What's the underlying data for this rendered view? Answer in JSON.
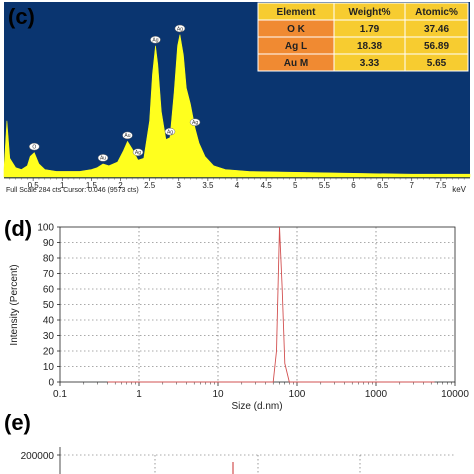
{
  "panels": {
    "c": "(c)",
    "d": "(d)",
    "e": "(e)"
  },
  "colors": {
    "eds_background": "#0a3570",
    "eds_fill": "#ffff1e",
    "table_header": "#f7cc30",
    "table_element_cell": "#f08a32",
    "table_value_cell": "#f7cc30",
    "dls_line": "#d25050"
  },
  "chart_data": [
    {
      "type": "area",
      "panel": "c",
      "xlabel_unit": "keV",
      "x_ticks": [
        "0.5",
        "1",
        "1.5",
        "2",
        "2.5",
        "3",
        "3.5",
        "4",
        "4.5",
        "5",
        "5.5",
        "6",
        "6.5",
        "7",
        "7.5"
      ],
      "xlim": [
        0.0,
        8.0
      ],
      "footer": "Full Scale 284 cts Cursor: 0.046  (9573 cts)",
      "spectrum": {
        "x": [
          0.0,
          0.05,
          0.1,
          0.2,
          0.3,
          0.4,
          0.45,
          0.52,
          0.6,
          0.7,
          0.9,
          1.1,
          1.3,
          1.5,
          1.6,
          1.7,
          1.8,
          1.95,
          2.05,
          2.12,
          2.2,
          2.3,
          2.4,
          2.5,
          2.55,
          2.6,
          2.64,
          2.7,
          2.78,
          2.85,
          2.92,
          2.98,
          3.02,
          3.08,
          3.13,
          3.2,
          3.28,
          3.35,
          3.45,
          3.6,
          3.8,
          4.2,
          5.0,
          6.0,
          7.0,
          8.0
        ],
        "y": [
          8,
          60,
          20,
          10,
          8,
          12,
          22,
          26,
          14,
          8,
          6,
          6,
          6,
          8,
          10,
          14,
          12,
          16,
          28,
          38,
          30,
          18,
          20,
          60,
          110,
          140,
          120,
          70,
          40,
          42,
          90,
          140,
          152,
          130,
          95,
          78,
          52,
          36,
          22,
          12,
          8,
          6,
          5,
          4,
          3,
          3
        ]
      },
      "peak_labels": [
        {
          "text": "O",
          "x": 0.52,
          "y": 26
        },
        {
          "text": "Au",
          "x": 1.7,
          "y": 14
        },
        {
          "text": "Au",
          "x": 2.12,
          "y": 38
        },
        {
          "text": "Ag",
          "x": 2.3,
          "y": 20
        },
        {
          "text": "Ag",
          "x": 2.6,
          "y": 140
        },
        {
          "text": "Ag",
          "x": 2.85,
          "y": 42
        },
        {
          "text": "Ag",
          "x": 3.02,
          "y": 152
        },
        {
          "text": "Ag",
          "x": 3.28,
          "y": 52
        }
      ],
      "table": {
        "headers": [
          "Element",
          "Weight%",
          "Atomic%"
        ],
        "rows": [
          [
            "O K",
            "1.79",
            "37.46"
          ],
          [
            "Ag L",
            "18.38",
            "56.89"
          ],
          [
            "Au M",
            "3.33",
            "5.65"
          ]
        ]
      }
    },
    {
      "type": "line",
      "panel": "d",
      "xlabel": "Size (d.nm)",
      "ylabel": "Intensity (Percent)",
      "xscale": "log",
      "xlim": [
        0.1,
        10000
      ],
      "ylim": [
        0,
        100
      ],
      "x_tick_labels": [
        "0.1",
        "1",
        "10",
        "100",
        "1000",
        "10000"
      ],
      "y_tick_labels": [
        "0",
        "10",
        "20",
        "30",
        "40",
        "50",
        "60",
        "70",
        "80",
        "90",
        "100"
      ],
      "grid": true,
      "series": [
        {
          "x": [
            0.4,
            30,
            50,
            55,
            60,
            65,
            70,
            80,
            200,
            1000,
            5500
          ],
          "y": [
            0,
            0,
            0,
            20,
            100,
            60,
            12,
            0,
            0,
            0,
            0
          ]
        }
      ]
    },
    {
      "type": "line",
      "panel": "e",
      "y_tick_labels": [
        "200000"
      ],
      "partial": true
    }
  ]
}
